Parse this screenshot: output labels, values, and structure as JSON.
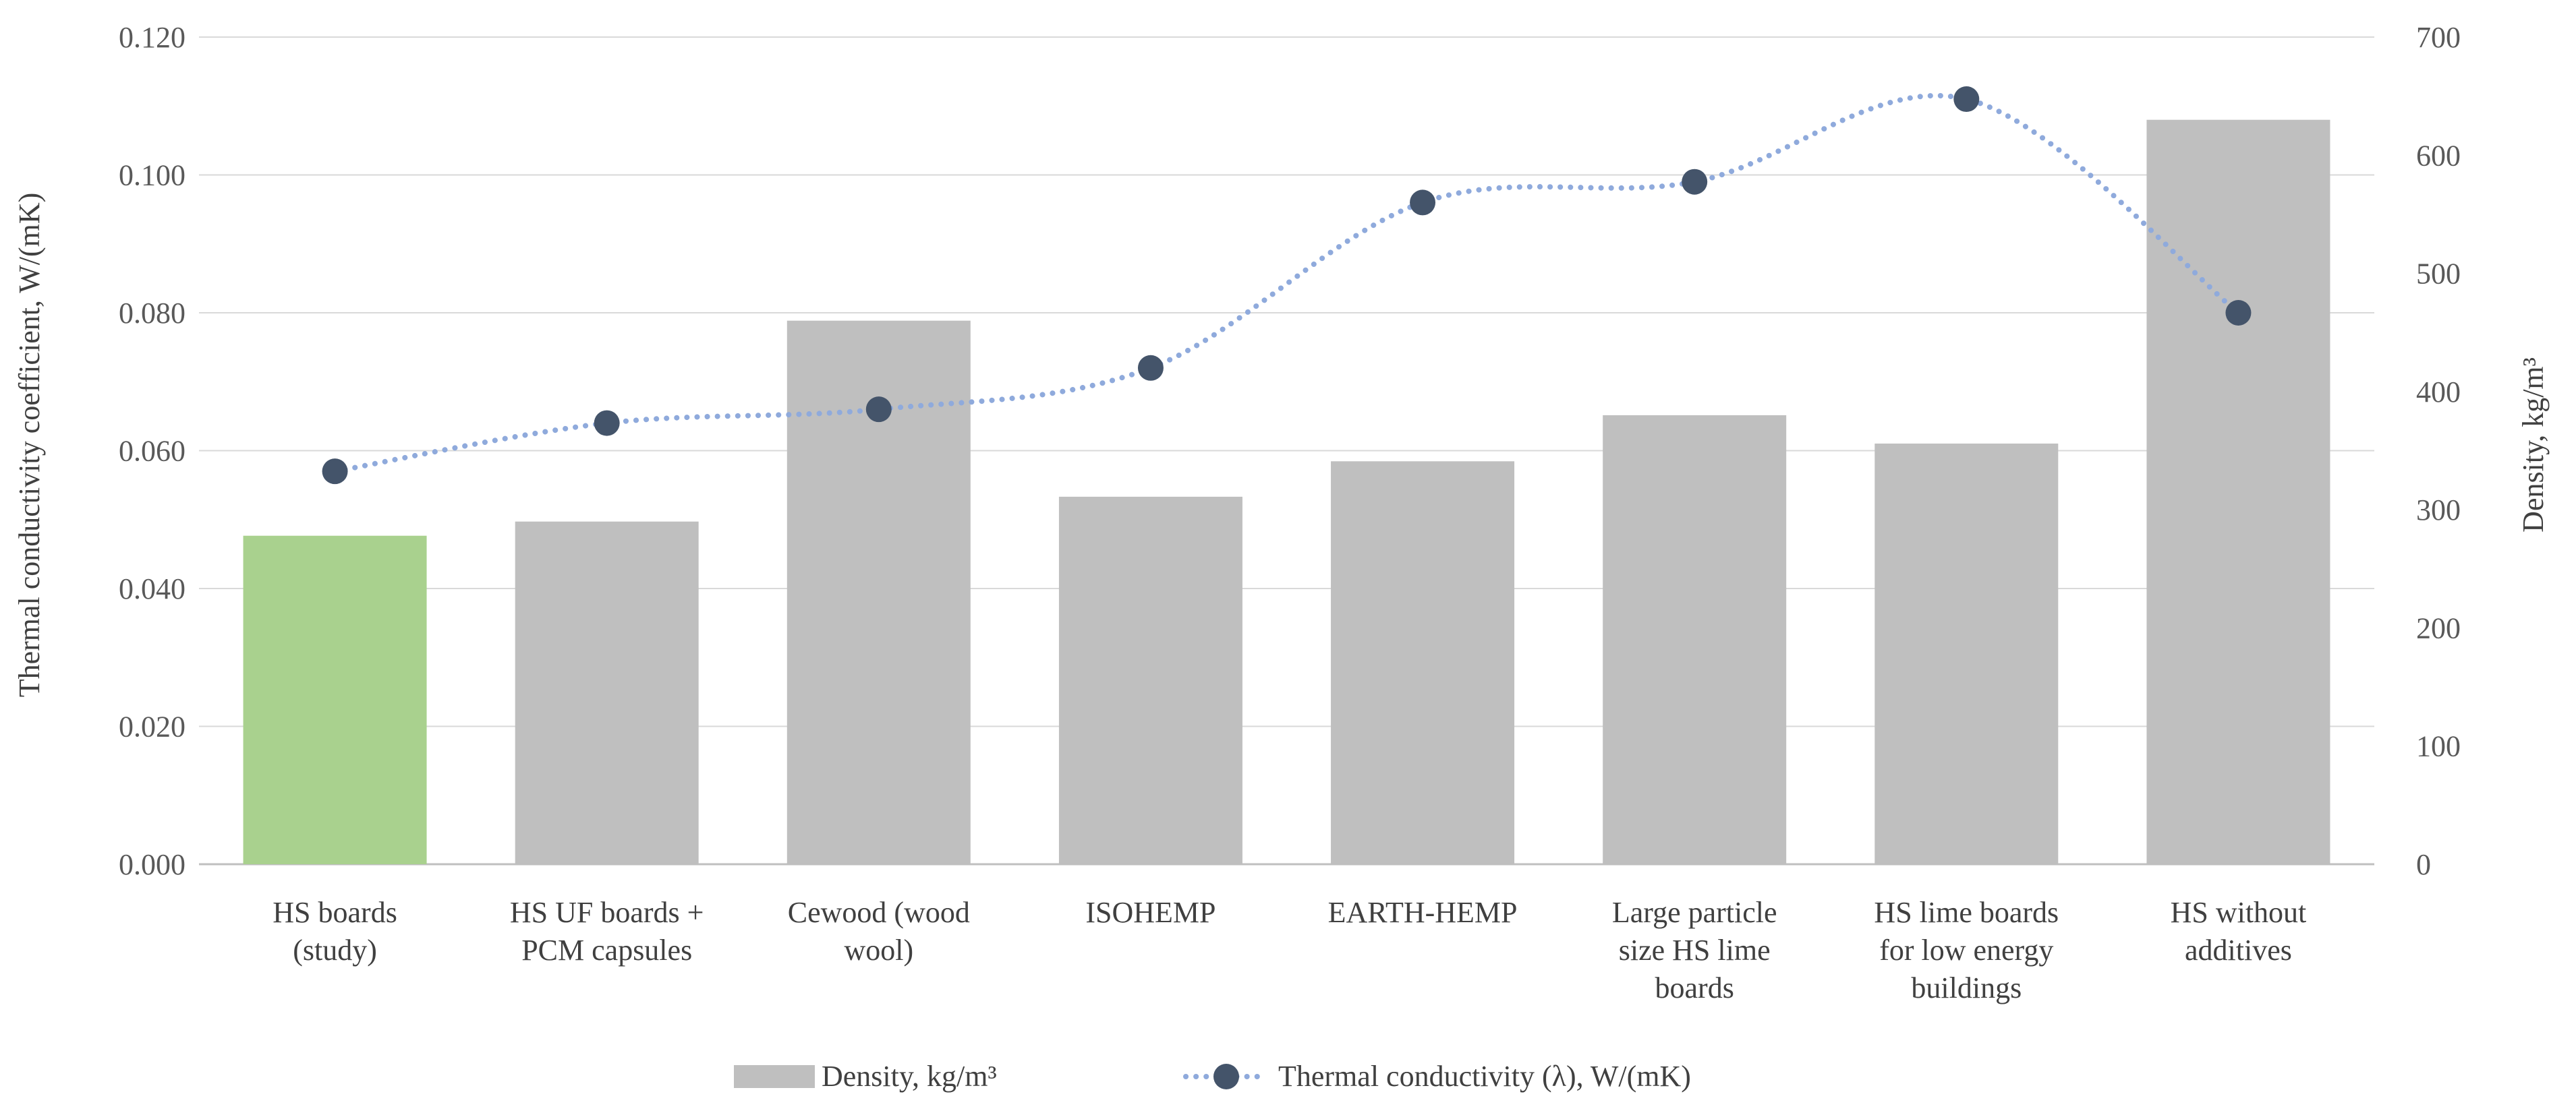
{
  "chart_data": {
    "type": "bar",
    "categories": [
      [
        "HS boards",
        "(study)"
      ],
      [
        "HS UF boards +",
        "PCM capsules"
      ],
      [
        "Cewood (wood",
        "wool)"
      ],
      [
        "ISOHEMP"
      ],
      [
        "EARTH-HEMP"
      ],
      [
        "Large particle",
        "size HS lime",
        "boards"
      ],
      [
        "HS lime boards",
        "for low energy",
        "buildings"
      ],
      [
        "HS without",
        "additives"
      ]
    ],
    "series": [
      {
        "name": "Density, kg/m³",
        "type": "bar",
        "axis": "right",
        "values": [
          278,
          290,
          460,
          311,
          341,
          380,
          356,
          630
        ],
        "color": "#bfbfbf",
        "highlight_index": 0,
        "highlight_color": "#a9d18e"
      },
      {
        "name": "Thermal conductivity (λ), W/(mK)",
        "type": "line",
        "axis": "left",
        "values": [
          0.057,
          0.064,
          0.066,
          0.072,
          0.096,
          0.099,
          0.111,
          0.08
        ],
        "color": "#44546a",
        "line_color": "#8faadc"
      }
    ],
    "y_left": {
      "label": "Thermal conductivity coefficient, W/(mK)",
      "ylim": [
        0,
        0.12
      ],
      "ticks": [
        "0.000",
        "0.020",
        "0.040",
        "0.060",
        "0.080",
        "0.100",
        "0.120"
      ]
    },
    "y_right": {
      "label": "Density, kg/m³",
      "ylim": [
        0,
        700
      ],
      "ticks": [
        "0",
        "100",
        "200",
        "300",
        "400",
        "500",
        "600",
        "700"
      ]
    },
    "grid": true,
    "legend": "bottom-center"
  }
}
